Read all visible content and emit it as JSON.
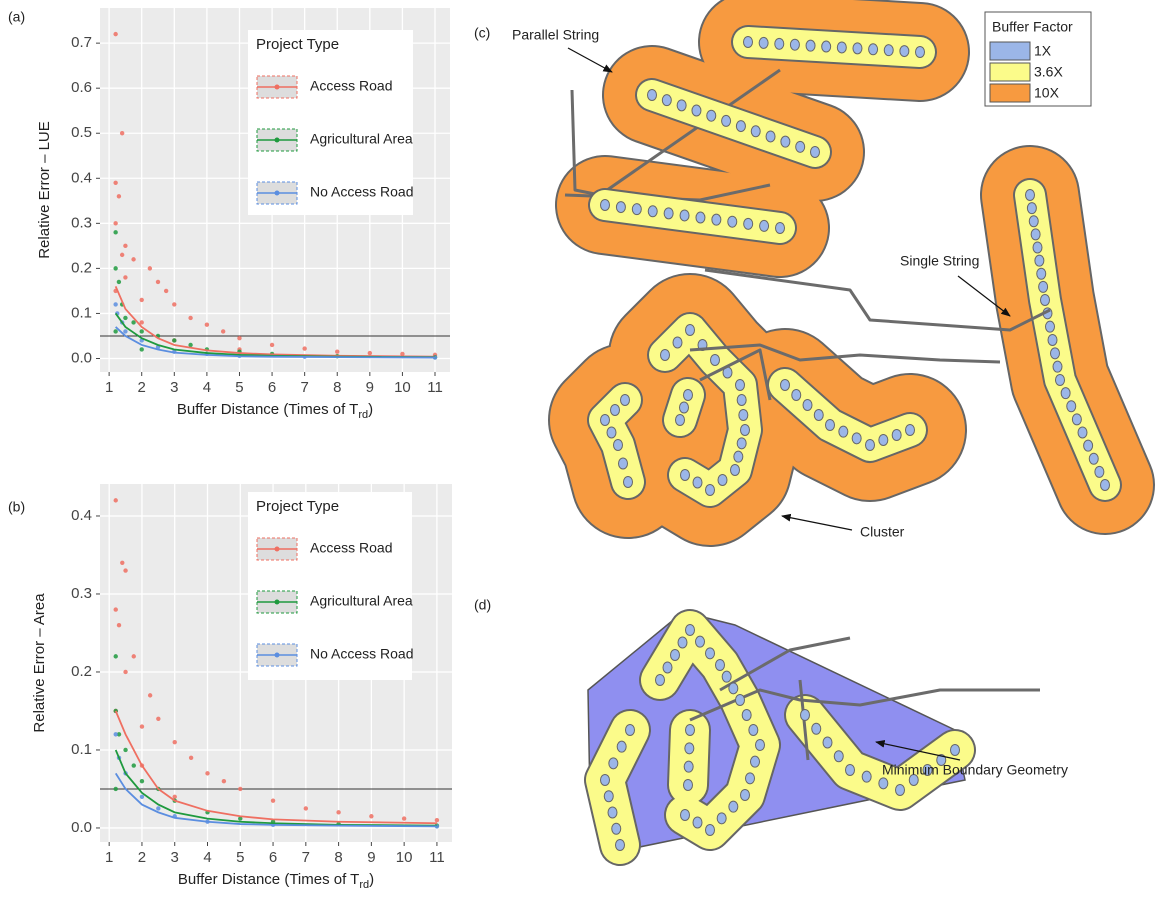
{
  "panel_labels": [
    "(a)",
    "(b)",
    "(c)",
    "(d)"
  ],
  "chart_data": [
    {
      "type": "scatter",
      "ylabel": "Relative Error – LUE",
      "xlabel": {
        "text": "Buffer Distance (Times of T",
        "sub": "rd",
        "close": ")"
      },
      "legend_title": "Project Type",
      "grid": true,
      "hline": 0.05,
      "xlim": [
        0.72,
        11.46
      ],
      "ylim": [
        -0.03,
        0.778
      ],
      "xticks": [
        1,
        2,
        3,
        4,
        5,
        6,
        7,
        8,
        9,
        10,
        11
      ],
      "yticks": [
        {
          "value": 0,
          "label": "0.0"
        },
        0.1,
        0.2,
        0.3,
        0.4,
        0.5,
        0.6,
        0.7
      ],
      "series": [
        {
          "name": "Access Road",
          "color": "#ef6f61",
          "x": [
            1.2,
            1.2,
            1.2,
            1.3,
            1.4,
            1.4,
            1.5,
            1.5,
            1.75,
            2,
            2.25,
            2.5,
            2.75,
            3,
            3.5,
            4,
            4.5,
            5,
            6,
            7,
            8,
            9,
            10,
            11,
            1.2,
            2,
            3,
            5
          ],
          "values": [
            0.72,
            0.39,
            0.3,
            0.36,
            0.5,
            0.23,
            0.25,
            0.18,
            0.22,
            0.13,
            0.2,
            0.17,
            0.15,
            0.12,
            0.09,
            0.075,
            0.06,
            0.045,
            0.03,
            0.022,
            0.015,
            0.012,
            0.01,
            0.008,
            0.15,
            0.08,
            0.04,
            0.02
          ],
          "trend": {
            "x": [
              1.2,
              1.5,
              2,
              2.5,
              3,
              4,
              5,
              6,
              8,
              11
            ],
            "values": [
              0.16,
              0.11,
              0.07,
              0.045,
              0.03,
              0.018,
              0.012,
              0.009,
              0.006,
              0.004
            ]
          }
        },
        {
          "name": "Agricultural Area",
          "color": "#1f9a3e",
          "x": [
            1.2,
            1.2,
            1.3,
            1.4,
            1.5,
            1.75,
            2,
            2.5,
            3,
            3.5,
            4,
            5,
            6,
            8,
            11,
            1.2,
            2
          ],
          "values": [
            0.28,
            0.2,
            0.17,
            0.12,
            0.09,
            0.08,
            0.06,
            0.05,
            0.04,
            0.03,
            0.02,
            0.015,
            0.01,
            0.005,
            0.003,
            0.06,
            0.02
          ],
          "trend": {
            "x": [
              1.2,
              1.5,
              2,
              2.5,
              3,
              4,
              5,
              6,
              8,
              11
            ],
            "values": [
              0.1,
              0.07,
              0.045,
              0.03,
              0.02,
              0.012,
              0.008,
              0.006,
              0.004,
              0.003
            ]
          }
        },
        {
          "name": "No Access Road",
          "color": "#5b8ee0",
          "x": [
            1.2,
            1.25,
            1.4,
            1.5,
            2,
            2.5,
            3,
            4,
            5,
            7,
            11
          ],
          "values": [
            0.12,
            0.1,
            0.08,
            0.06,
            0.04,
            0.025,
            0.015,
            0.01,
            0.006,
            0.004,
            0.002
          ],
          "trend": {
            "x": [
              1.2,
              1.5,
              2,
              2.5,
              3,
              4,
              5,
              6,
              8,
              11
            ],
            "values": [
              0.07,
              0.05,
              0.03,
              0.02,
              0.013,
              0.008,
              0.005,
              0.004,
              0.003,
              0.002
            ]
          }
        }
      ]
    },
    {
      "type": "scatter",
      "ylabel": "Relative Error – Area",
      "xlabel": {
        "text": "Buffer Distance (Times of T",
        "sub": "rd",
        "close": ")"
      },
      "legend_title": "Project Type",
      "grid": true,
      "hline": 0.05,
      "xlim": [
        0.72,
        11.46
      ],
      "ylim": [
        -0.018,
        0.441
      ],
      "xticks": [
        1,
        2,
        3,
        4,
        5,
        6,
        7,
        8,
        9,
        10,
        11
      ],
      "yticks": [
        {
          "value": 0,
          "label": "0.0"
        },
        0.1,
        0.2,
        0.3,
        0.4
      ],
      "series": [
        {
          "name": "Access Road",
          "color": "#ef6f61",
          "x": [
            1.2,
            1.2,
            1.3,
            1.4,
            1.5,
            1.5,
            1.75,
            2,
            2.25,
            2.5,
            3,
            3.5,
            4,
            4.5,
            5,
            6,
            7,
            8,
            9,
            10,
            11,
            1.2,
            2,
            3
          ],
          "values": [
            0.42,
            0.28,
            0.26,
            0.34,
            0.33,
            0.2,
            0.22,
            0.13,
            0.17,
            0.14,
            0.11,
            0.09,
            0.07,
            0.06,
            0.05,
            0.035,
            0.025,
            0.02,
            0.015,
            0.012,
            0.01,
            0.15,
            0.08,
            0.04
          ],
          "trend": {
            "x": [
              1.2,
              1.5,
              2,
              2.5,
              3,
              4,
              5,
              6,
              8,
              11
            ],
            "values": [
              0.15,
              0.12,
              0.08,
              0.05,
              0.035,
              0.022,
              0.015,
              0.011,
              0.008,
              0.006
            ]
          }
        },
        {
          "name": "Agricultural Area",
          "color": "#1f9a3e",
          "x": [
            1.2,
            1.2,
            1.3,
            1.5,
            1.75,
            2,
            2.5,
            3,
            4,
            5,
            6,
            8,
            11,
            1.2
          ],
          "values": [
            0.22,
            0.15,
            0.12,
            0.1,
            0.08,
            0.06,
            0.05,
            0.035,
            0.02,
            0.012,
            0.008,
            0.005,
            0.003,
            0.05
          ],
          "trend": {
            "x": [
              1.2,
              1.5,
              2,
              2.5,
              3,
              4,
              5,
              6,
              8,
              11
            ],
            "values": [
              0.1,
              0.07,
              0.045,
              0.03,
              0.02,
              0.012,
              0.008,
              0.006,
              0.004,
              0.003
            ]
          }
        },
        {
          "name": "No Access Road",
          "color": "#5b8ee0",
          "x": [
            1.2,
            1.3,
            1.5,
            2,
            2.5,
            3,
            4,
            6,
            11
          ],
          "values": [
            0.12,
            0.09,
            0.07,
            0.04,
            0.025,
            0.015,
            0.008,
            0.004,
            0.002
          ],
          "trend": {
            "x": [
              1.2,
              1.5,
              2,
              2.5,
              3,
              4,
              5,
              6,
              8,
              11
            ],
            "values": [
              0.07,
              0.05,
              0.03,
              0.02,
              0.013,
              0.008,
              0.005,
              0.004,
              0.003,
              0.002
            ]
          }
        }
      ]
    }
  ],
  "diagram": {
    "annotations": [
      "Parallel String",
      "Single String",
      "Cluster",
      "Minimum Boundary Geometry"
    ],
    "legend": {
      "title": "Buffer Factor",
      "entries": [
        "1X",
        "3.6X",
        "10X"
      ],
      "colors": [
        "#9bb6e8",
        "#fbfb8a",
        "#f79a40"
      ]
    },
    "hull_color": "#8f8ff0"
  }
}
